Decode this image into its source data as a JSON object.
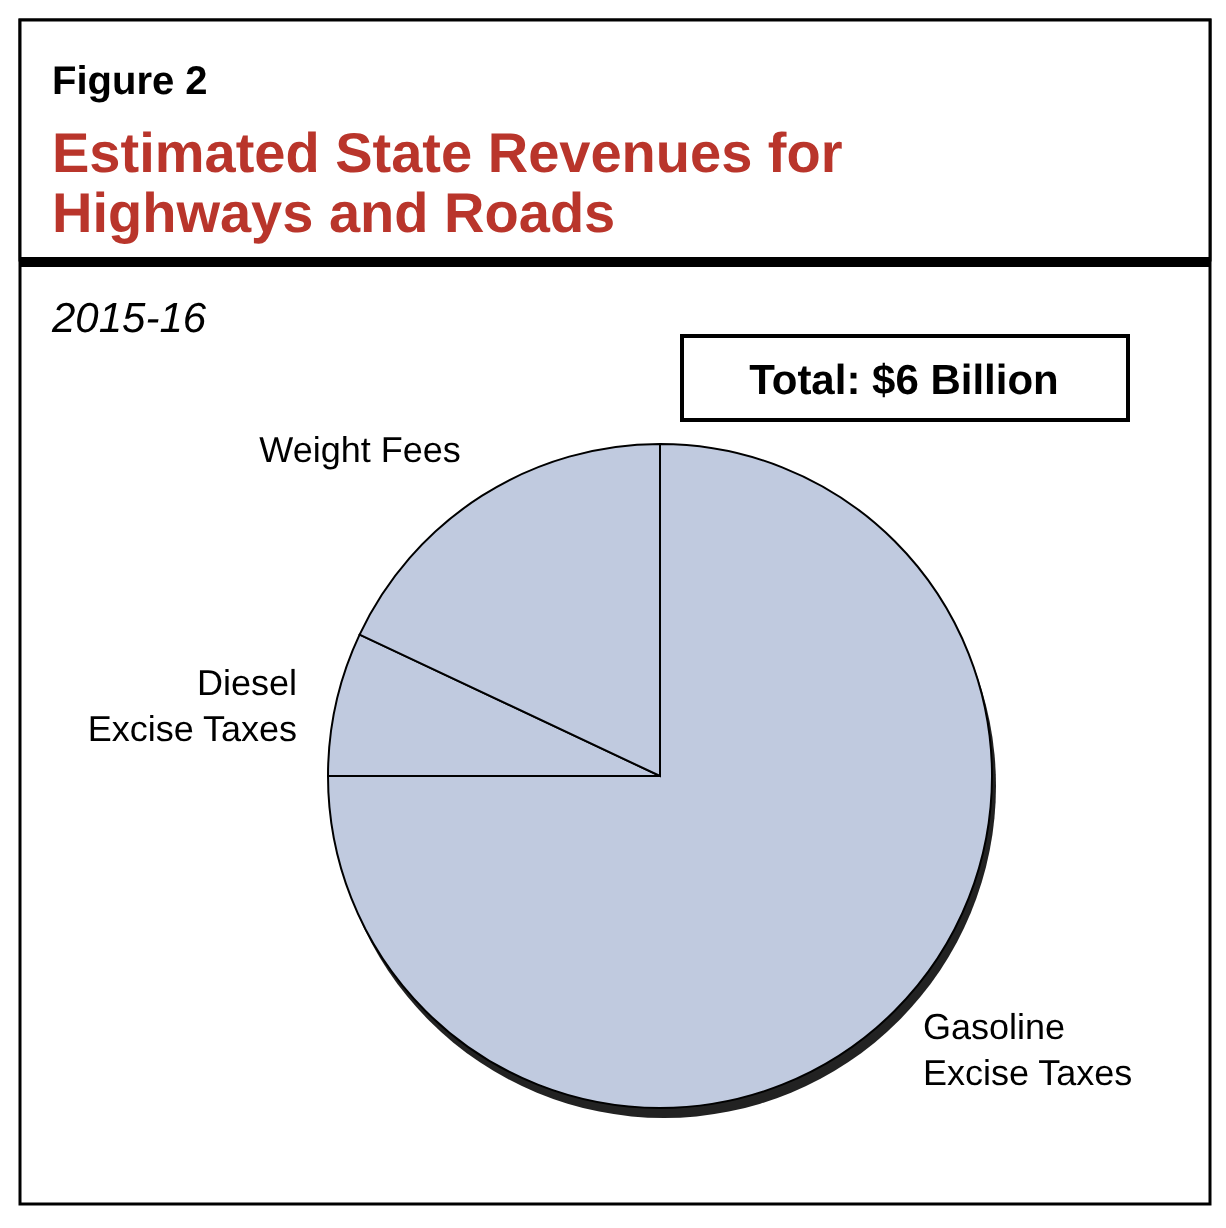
{
  "chart_data": {
    "type": "pie",
    "title": "Estimated State Revenues for Highways and Roads",
    "subtitle": "2015-16",
    "annotations": [
      "Figure 2",
      "Total: $6 Billion"
    ],
    "categories": [
      "Gasoline Excise Taxes",
      "Diesel Excise Taxes",
      "Weight Fees"
    ],
    "values": [
      75,
      7,
      18
    ],
    "colors": [
      "#c0cadf",
      "#c0cadf",
      "#c0cadf"
    ]
  }
}
